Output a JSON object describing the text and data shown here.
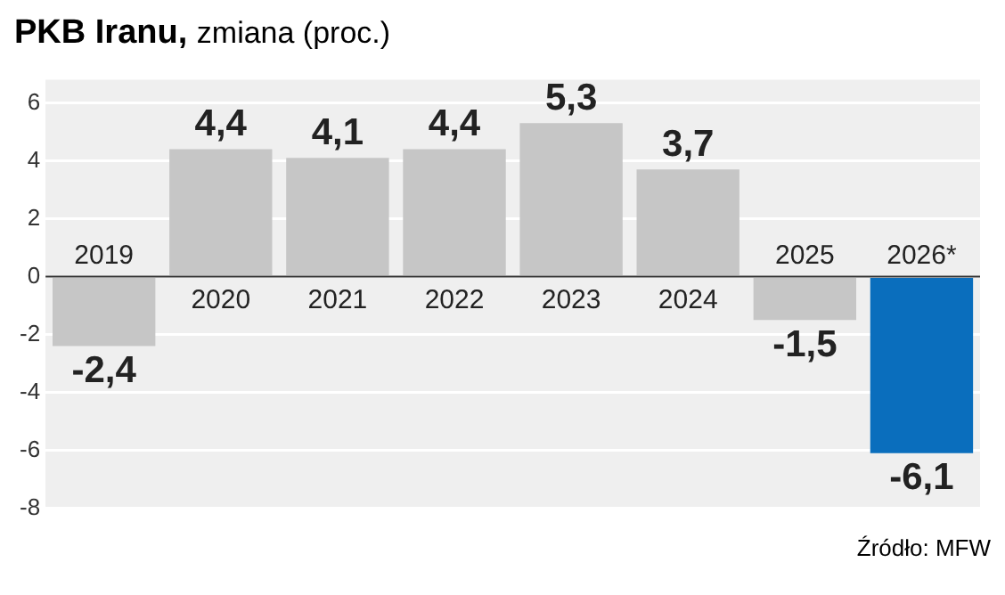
{
  "chart_data": {
    "type": "bar",
    "title": "PKB Iranu,",
    "subtitle": "zmiana (proc.)",
    "categories": [
      "2019",
      "2020",
      "2021",
      "2022",
      "2023",
      "2024",
      "2025",
      "2026*"
    ],
    "values": [
      -2.4,
      4.4,
      4.1,
      4.4,
      5.3,
      3.7,
      -1.5,
      -6.1
    ],
    "colors": [
      "#c6c6c6",
      "#c6c6c6",
      "#c6c6c6",
      "#c6c6c6",
      "#c6c6c6",
      "#c6c6c6",
      "#c6c6c6",
      "#0a6ebd"
    ],
    "value_labels": [
      "-2,4",
      "4,4",
      "4,1",
      "4,4",
      "5,3",
      "3,7",
      "-1,5",
      "-6,1"
    ],
    "ylim": [
      -8,
      6.8
    ],
    "yticks": [
      -8,
      -6,
      -4,
      -2,
      0,
      2,
      4,
      6
    ],
    "grid": "y",
    "annotations": [
      "Źródło: MFW"
    ]
  }
}
